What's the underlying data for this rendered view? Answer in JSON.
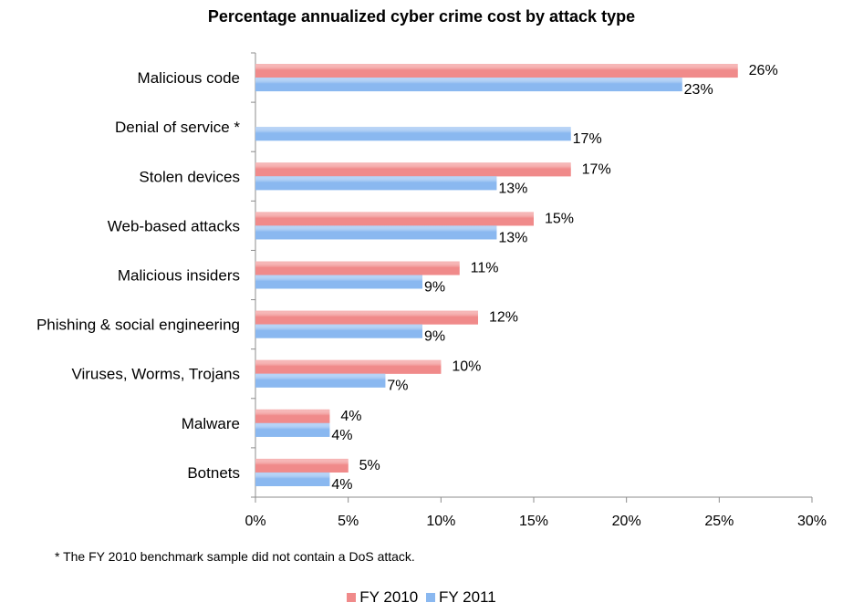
{
  "chart_data": {
    "type": "bar",
    "orientation": "horizontal",
    "title": "Percentage annualized cyber crime cost by attack type",
    "categories": [
      "Malicious code",
      "Denial of service *",
      "Stolen devices",
      "Web-based attacks",
      "Malicious insiders",
      "Phishing & social engineering",
      "Viruses, Worms, Trojans",
      "Malware",
      "Botnets"
    ],
    "series": [
      {
        "name": "FY 2010",
        "color": "#f08a8a",
        "values": [
          26,
          null,
          17,
          15,
          11,
          12,
          10,
          4,
          5
        ],
        "labels": [
          "26%",
          "",
          "17%",
          "15%",
          "11%",
          "12%",
          "10%",
          "4%",
          "5%"
        ]
      },
      {
        "name": "FY 2011",
        "color": "#8ab8f0",
        "values": [
          23,
          17,
          13,
          13,
          9,
          9,
          7,
          4,
          4
        ],
        "labels": [
          "23%",
          "17%",
          "13%",
          "13%",
          "9%",
          "9%",
          "7%",
          "4%",
          "4%"
        ]
      }
    ],
    "xlim": [
      0,
      30
    ],
    "xticks": [
      "0%",
      "5%",
      "10%",
      "15%",
      "20%",
      "25%",
      "30%"
    ],
    "grid": false,
    "legend_position": "bottom"
  },
  "footnote": "* The FY 2010 benchmark sample did not contain a DoS attack."
}
